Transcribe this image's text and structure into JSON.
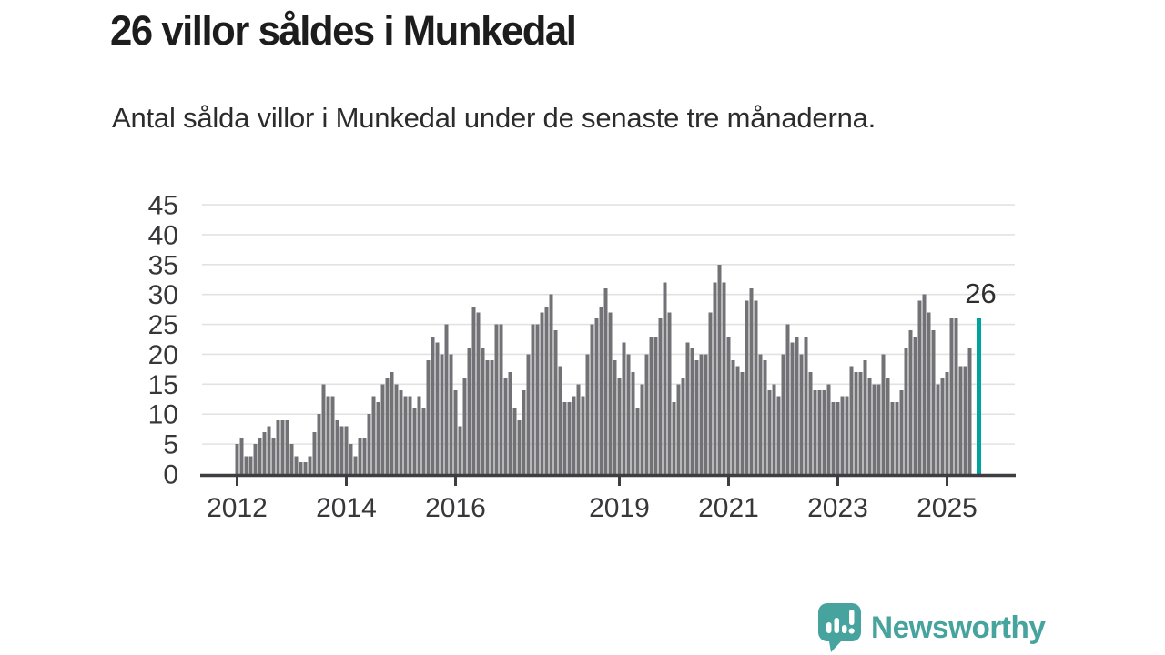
{
  "header": {
    "title": "26 villor såldes i Munkedal",
    "subtitle": "Antal sålda villor i Munkedal under de senaste tre månaderna."
  },
  "chart_data": {
    "type": "bar",
    "title": "26 villor såldes i Munkedal",
    "xlabel": "",
    "ylabel": "",
    "ylim": [
      0,
      45
    ],
    "yticks": [
      0,
      5,
      10,
      15,
      20,
      25,
      30,
      35,
      40,
      45
    ],
    "xtick_years": [
      2012,
      2014,
      2016,
      2019,
      2021,
      2023,
      2025
    ],
    "xtick_labels": [
      "2012",
      "2014",
      "2016",
      "2019",
      "2021",
      "2023",
      "2025"
    ],
    "grid": true,
    "legend": "none",
    "bar_color": "#717176",
    "highlight_color": "#00a39e",
    "series_start": "2012-01",
    "series": [
      {
        "year": 2012,
        "monthly": [
          5,
          6,
          3,
          3,
          5,
          6,
          7,
          8,
          6,
          9,
          9,
          9
        ]
      },
      {
        "year": 2013,
        "monthly": [
          5,
          3,
          2,
          2,
          3,
          7,
          10,
          15,
          13,
          13,
          9,
          8
        ]
      },
      {
        "year": 2014,
        "monthly": [
          8,
          5,
          3,
          6,
          6,
          10,
          13,
          12,
          15,
          16,
          17,
          15
        ]
      },
      {
        "year": 2015,
        "monthly": [
          14,
          13,
          13,
          11,
          13,
          11,
          19,
          23,
          22,
          20,
          25,
          20
        ]
      },
      {
        "year": 2016,
        "monthly": [
          14,
          8,
          16,
          21,
          28,
          27,
          21,
          19,
          19,
          25,
          25,
          16
        ]
      },
      {
        "year": 2017,
        "monthly": [
          17,
          11,
          9,
          14,
          20,
          25,
          25,
          27,
          28,
          30,
          24,
          18
        ]
      },
      {
        "year": 2018,
        "monthly": [
          12,
          12,
          13,
          15,
          13,
          20,
          25,
          26,
          28,
          31,
          27,
          19
        ]
      },
      {
        "year": 2019,
        "monthly": [
          16,
          22,
          20,
          17,
          11,
          15,
          20,
          23,
          23,
          26,
          32,
          27
        ]
      },
      {
        "year": 2020,
        "monthly": [
          12,
          15,
          16,
          22,
          21,
          19,
          20,
          20,
          27,
          32,
          35,
          32
        ]
      },
      {
        "year": 2021,
        "monthly": [
          23,
          19,
          18,
          17,
          29,
          31,
          29,
          20,
          19,
          14,
          15,
          13
        ]
      },
      {
        "year": 2022,
        "monthly": [
          20,
          25,
          22,
          23,
          20,
          23,
          17,
          14,
          14,
          14,
          15,
          12
        ]
      },
      {
        "year": 2023,
        "monthly": [
          12,
          13,
          13,
          18,
          17,
          17,
          19,
          16,
          15,
          15,
          20,
          16
        ]
      },
      {
        "year": 2024,
        "monthly": [
          12,
          12,
          14,
          21,
          24,
          23,
          29,
          30,
          27,
          24,
          15,
          16
        ]
      },
      {
        "year": 2025,
        "monthly": [
          17,
          26,
          26,
          18,
          18,
          21
        ]
      }
    ],
    "highlight": {
      "label": "26",
      "value": 26,
      "gap_slots": 1
    }
  },
  "footer": {
    "brand": "Newsworthy",
    "logo_icon": "speech-bubble-bar-chart-exclamation"
  },
  "colors": {
    "bar_gray": "#717176",
    "highlight_teal": "#00a39e",
    "brand_teal": "#46a39e",
    "axis": "#3e3e42",
    "gridline": "#e2e2e2",
    "tick_label": "#37373a",
    "title_text": "#1d1d1d",
    "subtitle_text": "#2c2c2c"
  }
}
